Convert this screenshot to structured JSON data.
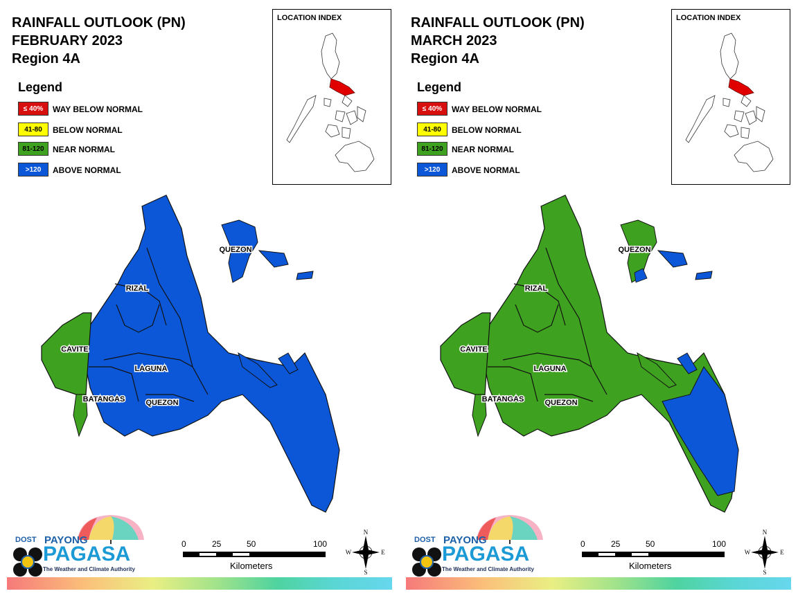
{
  "panels": [
    {
      "id": "feb",
      "title_line1": "RAINFALL OUTLOOK (PN)",
      "title_line2": "FEBRUARY 2023",
      "title_line3": "Region 4A",
      "province_colors": {
        "cavite": "#3fa120",
        "batangas_west": "#3fa120",
        "rest": "#0c57d7"
      }
    },
    {
      "id": "mar",
      "title_line1": "RAINFALL OUTLOOK (PN)",
      "title_line2": "MARCH 2023",
      "title_line3": "Region 4A",
      "province_colors": {
        "cavite": "#3fa120",
        "batangas_west": "#3fa120",
        "rest": "#3fa120",
        "quezon_south": "#0c57d7"
      }
    }
  ],
  "legend": {
    "title": "Legend",
    "items": [
      {
        "swatch": "≤ 40%",
        "label": "WAY BELOW NORMAL",
        "color": "#d80f0f",
        "text_color": "#ffffff"
      },
      {
        "swatch": "41-80",
        "label": "BELOW NORMAL",
        "color": "#ffff00",
        "text_color": "#000000"
      },
      {
        "swatch": "81-120",
        "label": "NEAR NORMAL",
        "color": "#3fa120",
        "text_color": "#000000"
      },
      {
        "swatch": ">120",
        "label": "ABOVE NORMAL",
        "color": "#0c57d7",
        "text_color": "#ffffff"
      }
    ]
  },
  "location_index": {
    "title": "LOCATION INDEX",
    "highlight_color": "#e00000"
  },
  "provinces": {
    "rizal": "RIZAL",
    "cavite": "CAVITE",
    "laguna": "LAGUNA",
    "batangas": "BATANGAS",
    "quezon": "QUEZON"
  },
  "scale": {
    "ticks": [
      "0",
      "25",
      "50",
      "100"
    ],
    "unit": "Kilometers"
  },
  "compass": {
    "n": "N",
    "s": "S",
    "e": "E",
    "w": "W"
  },
  "logo": {
    "dost": "DOST",
    "payong": "PAYONG",
    "pagasa": "PAGASA",
    "tagline": "The Weather and Climate Authority"
  }
}
